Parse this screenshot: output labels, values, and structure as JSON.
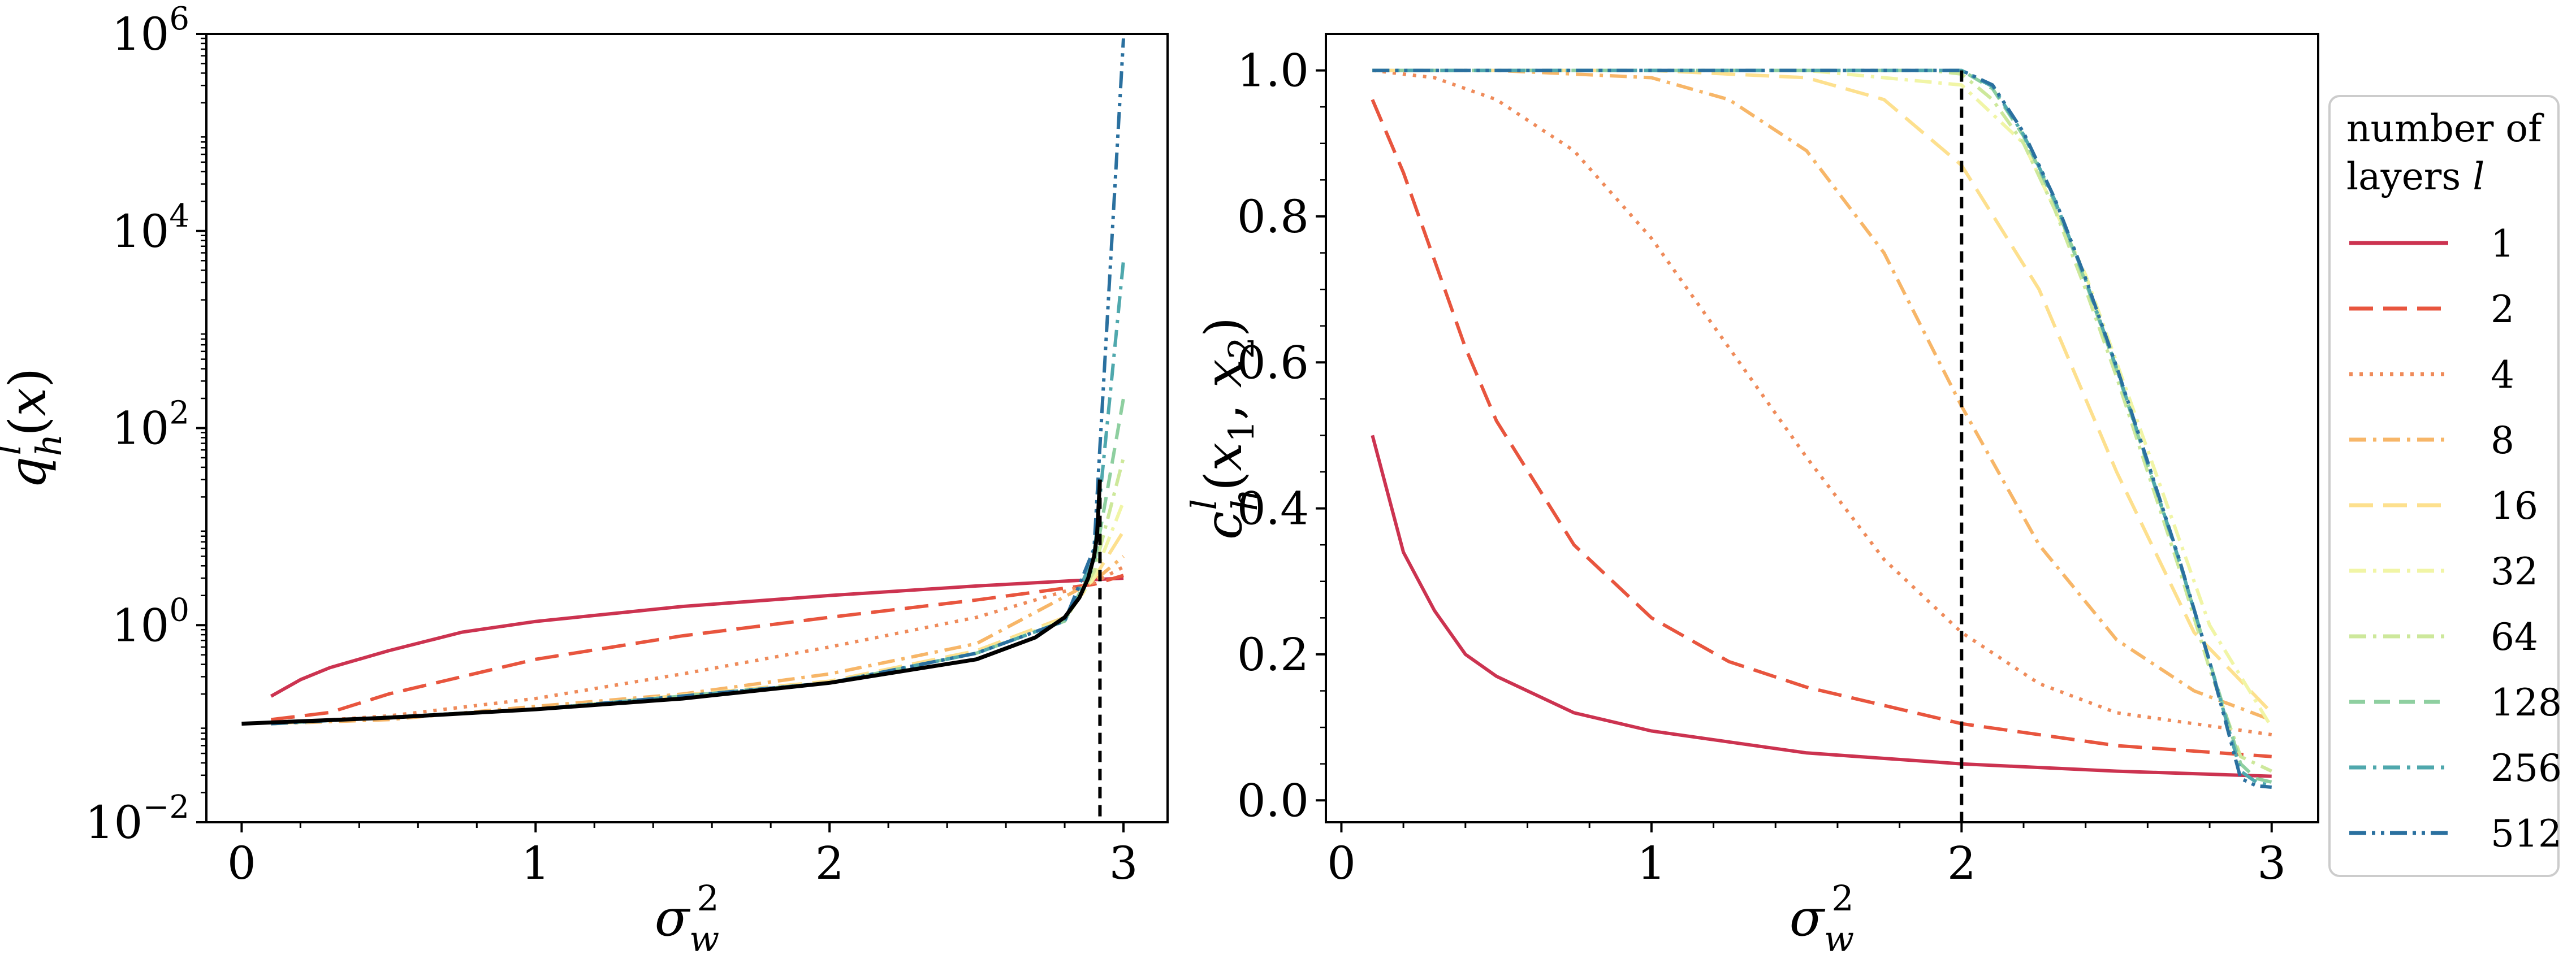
{
  "chart_data": [
    {
      "type": "line",
      "xlabel": "σw²",
      "ylabel": "qhl(x)",
      "y_scale": "log",
      "xlim": [
        -0.12,
        3.15
      ],
      "ylim": [
        0.01,
        1000000
      ],
      "x_ticks": [
        0,
        1,
        2,
        3
      ],
      "y_ticks": [
        {
          "value": 0.01,
          "base": "10",
          "exp": "−2"
        },
        {
          "value": 1,
          "base": "10",
          "exp": "0"
        },
        {
          "value": 100,
          "base": "10",
          "exp": "2"
        },
        {
          "value": 10000,
          "base": "10",
          "exp": "4"
        },
        {
          "value": 1000000,
          "base": "10",
          "exp": "6"
        }
      ],
      "vline": 2.92,
      "series": [
        {
          "name": "1",
          "color": "#cc3350",
          "dash": "none",
          "x": [
            0.1,
            0.2,
            0.3,
            0.5,
            0.75,
            1,
            1.5,
            2,
            2.5,
            2.9,
            3
          ],
          "y": [
            0.19,
            0.28,
            0.37,
            0.55,
            0.85,
            1.09,
            1.55,
            2.0,
            2.5,
            2.9,
            3.0
          ]
        },
        {
          "name": "2",
          "color": "#e8553e",
          "dash": "long",
          "x": [
            0.1,
            0.3,
            0.5,
            0.75,
            1,
            1.5,
            2,
            2.5,
            2.9,
            3
          ],
          "y": [
            0.11,
            0.13,
            0.2,
            0.3,
            0.45,
            0.78,
            1.2,
            1.8,
            2.6,
            3.2
          ]
        },
        {
          "name": "4",
          "color": "#ef8b5a",
          "dash": "dot",
          "x": [
            0.1,
            0.5,
            1,
            1.5,
            2,
            2.5,
            2.9,
            3
          ],
          "y": [
            0.1,
            0.12,
            0.18,
            0.32,
            0.6,
            1.2,
            2.7,
            3.9
          ]
        },
        {
          "name": "8",
          "color": "#f7b668",
          "dash": "dashdot",
          "x": [
            0.1,
            0.5,
            1,
            1.5,
            2,
            2.5,
            2.9,
            3
          ],
          "y": [
            0.1,
            0.11,
            0.15,
            0.2,
            0.32,
            0.65,
            2.8,
            5
          ]
        },
        {
          "name": "16",
          "color": "#fde08e",
          "dash": "long",
          "x": [
            0.1,
            1,
            2,
            2.5,
            2.8,
            2.9,
            3
          ],
          "y": [
            0.1,
            0.14,
            0.27,
            0.55,
            1.2,
            3,
            9
          ]
        },
        {
          "name": "32",
          "color": "#f1f5a6",
          "dash": "dashdot",
          "x": [
            0.1,
            1,
            2,
            2.5,
            2.8,
            2.9,
            3
          ],
          "y": [
            0.1,
            0.14,
            0.26,
            0.52,
            1.15,
            3.1,
            18
          ]
        },
        {
          "name": "64",
          "color": "#cde89b",
          "dash": "dashdot",
          "x": [
            0.1,
            1,
            2,
            2.5,
            2.8,
            2.9,
            3
          ],
          "y": [
            0.1,
            0.14,
            0.26,
            0.52,
            1.1,
            3.5,
            50
          ]
        },
        {
          "name": "128",
          "color": "#8ecfa0",
          "dash": "dash",
          "x": [
            0.1,
            1,
            2,
            2.5,
            2.8,
            2.9,
            3
          ],
          "y": [
            0.1,
            0.14,
            0.26,
            0.52,
            1.1,
            4,
            200
          ]
        },
        {
          "name": "256",
          "color": "#4fa8ad",
          "dash": "dashdot",
          "x": [
            0.1,
            1,
            2,
            2.5,
            2.8,
            2.9,
            3
          ],
          "y": [
            0.1,
            0.14,
            0.26,
            0.52,
            1.1,
            5,
            5000
          ]
        },
        {
          "name": "512",
          "color": "#2a709f",
          "dash": "dashdotdot",
          "x": [
            0.1,
            1,
            2,
            2.5,
            2.8,
            2.9,
            3
          ],
          "y": [
            0.1,
            0.14,
            0.26,
            0.52,
            1.1,
            6,
            900000
          ]
        },
        {
          "color": "#000000",
          "dash": "none",
          "x": [
            0,
            0.5,
            1,
            1.5,
            2,
            2.5,
            2.7,
            2.8,
            2.85,
            2.88,
            2.9,
            2.91,
            2.92
          ],
          "y": [
            0.1,
            0.115,
            0.14,
            0.18,
            0.26,
            0.45,
            0.75,
            1.2,
            1.9,
            3,
            5,
            8,
            30
          ]
        }
      ]
    },
    {
      "type": "line",
      "xlabel": "σw²",
      "ylabel": "chl(x1, x2)",
      "y_scale": "linear",
      "xlim": [
        -0.05,
        3.15
      ],
      "ylim": [
        -0.03,
        1.05
      ],
      "x_ticks": [
        0,
        1,
        2,
        3
      ],
      "y_ticks": [
        0.0,
        0.2,
        0.4,
        0.6,
        0.8,
        1.0
      ],
      "vline": 2.0,
      "series": [
        {
          "name": "1",
          "color": "#cc3350",
          "dash": "none",
          "x": [
            0.1,
            0.2,
            0.3,
            0.4,
            0.5,
            0.75,
            1,
            1.5,
            2,
            2.5,
            3
          ],
          "y": [
            0.5,
            0.34,
            0.26,
            0.2,
            0.17,
            0.12,
            0.095,
            0.065,
            0.05,
            0.04,
            0.033
          ]
        },
        {
          "name": "2",
          "color": "#e8553e",
          "dash": "long",
          "x": [
            0.1,
            0.2,
            0.3,
            0.4,
            0.5,
            0.75,
            1,
            1.25,
            1.5,
            2,
            2.5,
            3
          ],
          "y": [
            0.96,
            0.86,
            0.74,
            0.62,
            0.52,
            0.35,
            0.25,
            0.19,
            0.155,
            0.105,
            0.075,
            0.06
          ]
        },
        {
          "name": "4",
          "color": "#ef8b5a",
          "dash": "dot",
          "x": [
            0.1,
            0.3,
            0.5,
            0.75,
            1,
            1.25,
            1.5,
            1.75,
            2,
            2.25,
            2.5,
            3
          ],
          "y": [
            1.0,
            0.99,
            0.96,
            0.89,
            0.77,
            0.62,
            0.47,
            0.33,
            0.23,
            0.16,
            0.12,
            0.09
          ]
        },
        {
          "name": "8",
          "color": "#f7b668",
          "dash": "dashdot",
          "x": [
            0.1,
            0.5,
            1,
            1.25,
            1.5,
            1.75,
            2,
            2.25,
            2.5,
            2.75,
            3
          ],
          "y": [
            1.0,
            1.0,
            0.99,
            0.96,
            0.89,
            0.75,
            0.54,
            0.35,
            0.22,
            0.15,
            0.11
          ]
        },
        {
          "name": "16",
          "color": "#fde08e",
          "dash": "long",
          "x": [
            0.1,
            1,
            1.5,
            1.75,
            2,
            2.25,
            2.5,
            2.75,
            3
          ],
          "y": [
            1.0,
            1.0,
            0.99,
            0.96,
            0.87,
            0.7,
            0.45,
            0.23,
            0.12
          ]
        },
        {
          "name": "32",
          "color": "#f1f5a6",
          "dash": "dashdot",
          "x": [
            0.1,
            1.5,
            2,
            2.2,
            2.4,
            2.6,
            2.8,
            3
          ],
          "y": [
            1.0,
            1.0,
            0.98,
            0.9,
            0.72,
            0.48,
            0.24,
            0.1
          ]
        },
        {
          "name": "64",
          "color": "#cde89b",
          "dash": "dashdot",
          "x": [
            0.1,
            1.9,
            2.0,
            2.1,
            2.2,
            2.3,
            2.4,
            2.5,
            2.6,
            2.7,
            2.8,
            2.9,
            3.0
          ],
          "y": [
            1.0,
            1.0,
            0.995,
            0.96,
            0.9,
            0.81,
            0.7,
            0.58,
            0.45,
            0.32,
            0.18,
            0.06,
            0.04
          ]
        },
        {
          "name": "128",
          "color": "#8ecfa0",
          "dash": "dash",
          "x": [
            0.1,
            2.0,
            2.1,
            2.2,
            2.3,
            2.4,
            2.5,
            2.6,
            2.7,
            2.8,
            2.9,
            2.95,
            3.0
          ],
          "y": [
            1.0,
            1.0,
            0.975,
            0.91,
            0.82,
            0.71,
            0.59,
            0.46,
            0.33,
            0.19,
            0.05,
            0.03,
            0.025
          ]
        },
        {
          "name": "256",
          "color": "#4fa8ad",
          "dash": "dashdot",
          "x": [
            0.1,
            2.0,
            2.1,
            2.2,
            2.3,
            2.4,
            2.5,
            2.6,
            2.7,
            2.8,
            2.9,
            2.95,
            3.0
          ],
          "y": [
            1.0,
            1.0,
            0.978,
            0.912,
            0.823,
            0.713,
            0.592,
            0.462,
            0.331,
            0.19,
            0.04,
            0.025,
            0.02
          ]
        },
        {
          "name": "512",
          "color": "#2a709f",
          "dash": "dashdotdot",
          "x": [
            0.1,
            2.0,
            2.1,
            2.2,
            2.3,
            2.4,
            2.5,
            2.6,
            2.7,
            2.8,
            2.9,
            2.95,
            3.0
          ],
          "y": [
            1.0,
            1.0,
            0.98,
            0.915,
            0.825,
            0.715,
            0.594,
            0.464,
            0.333,
            0.19,
            0.03,
            0.02,
            0.018
          ]
        }
      ]
    }
  ],
  "legend": {
    "title_line1": "number of",
    "title_line2": "layers",
    "title_var": "l",
    "placement": "right, outside"
  }
}
